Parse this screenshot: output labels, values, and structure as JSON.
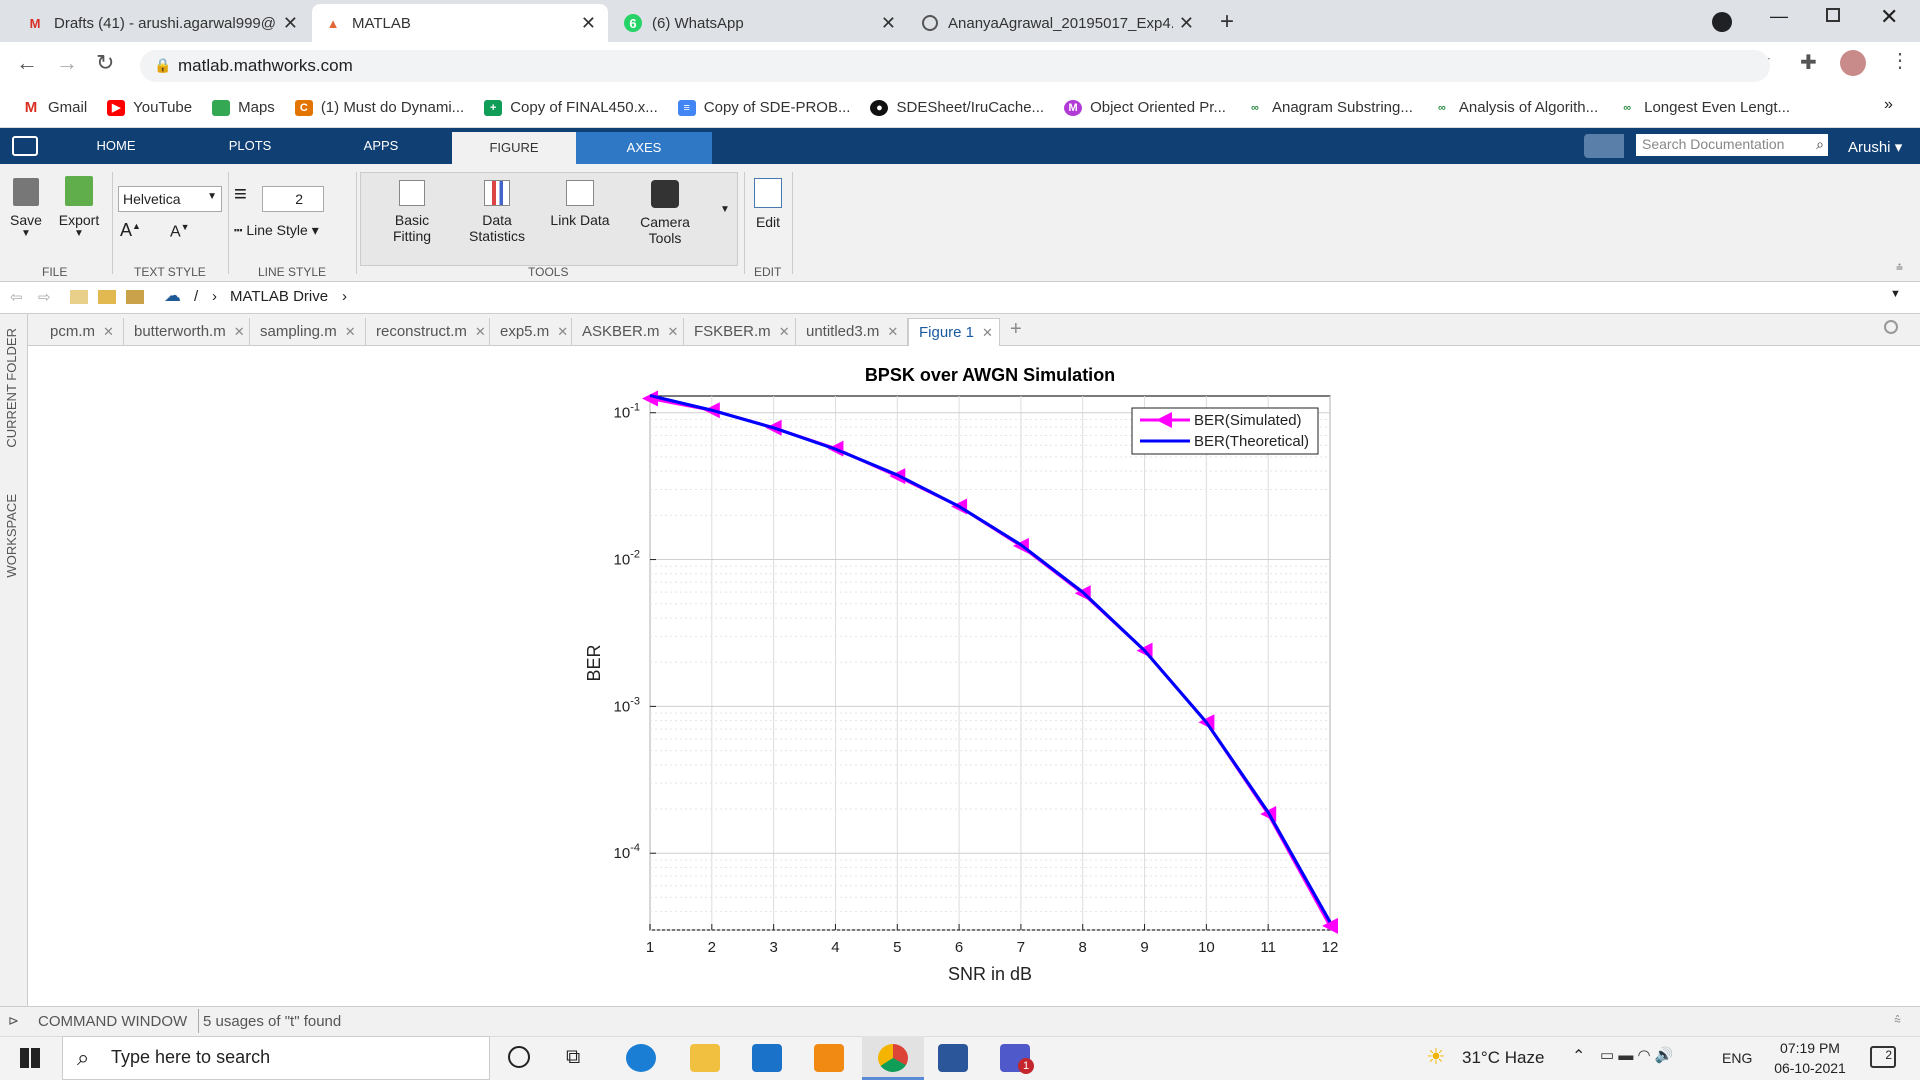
{
  "browser": {
    "tabs": [
      {
        "title": "Drafts (41) - arushi.agarwal999@",
        "icon": "gmail-icon"
      },
      {
        "title": "MATLAB",
        "icon": "matlab-icon"
      },
      {
        "title": "(6) WhatsApp",
        "icon": "whatsapp-icon"
      },
      {
        "title": "AnanyaAgrawal_20195017_Exp4.",
        "icon": "globe-icon"
      }
    ],
    "url": "matlab.mathworks.com",
    "bookmarks": [
      "Gmail",
      "YouTube",
      "Maps",
      "(1) Must do Dynami...",
      "Copy of FINAL450.x...",
      "Copy of SDE-PROB...",
      "SDESheet/IruCache...",
      "Object Oriented Pr...",
      "Anagram Substring...",
      "Analysis of Algorith...",
      "Longest Even Lengt..."
    ],
    "whatsapp_badge": "6"
  },
  "matlab": {
    "tabs": [
      "HOME",
      "PLOTS",
      "APPS",
      "FIGURE",
      "AXES"
    ],
    "search_placeholder": "Search Documentation",
    "user": "Arushi",
    "toolstrip": {
      "save": "Save",
      "export": "Export",
      "font": "Helvetica",
      "line_width": "2",
      "line_style": "Line Style",
      "basic_fitting": [
        "Basic",
        "Fitting"
      ],
      "data_statistics": [
        "Data",
        "Statistics"
      ],
      "link_data": "Link Data",
      "camera_tools": [
        "Camera",
        "Tools"
      ],
      "edit": "Edit",
      "sections": {
        "file": "FILE",
        "text_style": "TEXT STYLE",
        "line_style": "LINE STYLE",
        "tools": "TOOLS",
        "edit": "EDIT"
      }
    },
    "path": {
      "root": "/",
      "folder": "MATLAB Drive"
    },
    "side_panels": [
      "CURRENT FOLDER",
      "WORKSPACE"
    ],
    "file_tabs": [
      "pcm.m",
      "butterworth.m",
      "sampling.m",
      "reconstruct.m",
      "exp5.m",
      "ASKBER.m",
      "FSKBER.m",
      "untitled3.m",
      "Figure 1"
    ],
    "command_window": "COMMAND WINDOW",
    "status": "5 usages of \"t\" found"
  },
  "chart_data": {
    "type": "line",
    "title": "BPSK over AWGN Simulation",
    "xlabel": "SNR in dB",
    "ylabel": "BER",
    "xlim": [
      1,
      12
    ],
    "ylim": [
      3e-05,
      0.13
    ],
    "yscale": "log",
    "grid": true,
    "legend_position": "top-right",
    "x": [
      1,
      2,
      3,
      4,
      5,
      6,
      7,
      8,
      9,
      10,
      11,
      12
    ],
    "xticks": [
      "1",
      "2",
      "3",
      "4",
      "5",
      "6",
      "7",
      "8",
      "9",
      "10",
      "11",
      "12"
    ],
    "yticks": [
      {
        "base": "10",
        "exp": "-1",
        "v": 0.1
      },
      {
        "base": "10",
        "exp": "-2",
        "v": 0.01
      },
      {
        "base": "10",
        "exp": "-3",
        "v": 0.001
      },
      {
        "base": "10",
        "exp": "-4",
        "v": 0.0001
      }
    ],
    "series": [
      {
        "name": "BER(Simulated)",
        "color": "#ff00ff",
        "marker": "left-triangle",
        "values": [
          0.125,
          0.104,
          0.079,
          0.057,
          0.037,
          0.023,
          0.0124,
          0.0059,
          0.0024,
          0.00078,
          0.000185,
          3.2e-05
        ]
      },
      {
        "name": "BER(Theoretical)",
        "color": "#0000ff",
        "values": [
          0.1309,
          0.104,
          0.0789,
          0.0565,
          0.0377,
          0.023,
          0.0126,
          0.006,
          0.0024,
          0.00078,
          0.00019,
          3.4e-05
        ]
      }
    ]
  },
  "taskbar": {
    "search_placeholder": "Type here to search",
    "weather": "31°C  Haze",
    "lang": "ENG",
    "time": "07:19 PM",
    "date": "06-10-2021",
    "notif": "2",
    "teams_badge": "1"
  },
  "colors": {
    "matlab_blue": "#0f3f73",
    "axes_tab": "#2f78c5",
    "sim": "#ff00ff",
    "theo": "#0000ff"
  }
}
